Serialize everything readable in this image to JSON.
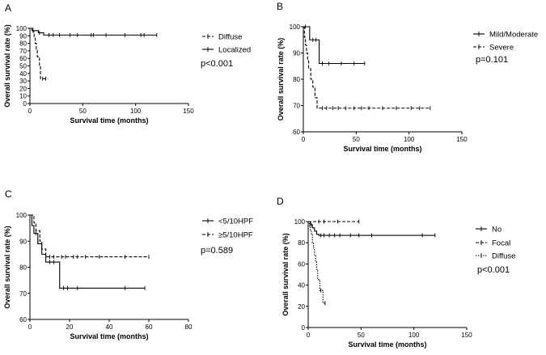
{
  "chart_data": [
    {
      "panel": "A",
      "type": "line",
      "step": true,
      "xlabel": "Survival time (months)",
      "ylabel": "Overall survival rate (%)",
      "xlim": [
        0,
        150
      ],
      "ylim": [
        0,
        100
      ],
      "xticks": [
        0,
        50,
        100,
        150
      ],
      "yticks": [
        0,
        10,
        20,
        30,
        40,
        50,
        60,
        70,
        80,
        90,
        100
      ],
      "legend_position": "right",
      "annotation": "p<0.001",
      "series": [
        {
          "name": "Diffuse",
          "style": "dashed",
          "steps": [
            [
              0,
              100
            ],
            [
              3,
              95
            ],
            [
              4,
              88
            ],
            [
              5,
              80
            ],
            [
              6,
              72
            ],
            [
              7,
              62
            ],
            [
              9,
              50
            ],
            [
              10,
              33
            ],
            [
              17,
              33
            ]
          ],
          "censored": [
            [
              12,
              33
            ],
            [
              15,
              33
            ]
          ]
        },
        {
          "name": "Localized",
          "style": "solid",
          "steps": [
            [
              0,
              100
            ],
            [
              2,
              97
            ],
            [
              6,
              97
            ],
            [
              8,
              94
            ],
            [
              11,
              94
            ],
            [
              13,
              91
            ],
            [
              120,
              91
            ]
          ],
          "censored": [
            [
              3,
              97
            ],
            [
              9,
              94
            ],
            [
              18,
              91
            ],
            [
              22,
              91
            ],
            [
              28,
              91
            ],
            [
              38,
              91
            ],
            [
              45,
              91
            ],
            [
              58,
              91
            ],
            [
              60,
              91
            ],
            [
              72,
              91
            ],
            [
              90,
              91
            ],
            [
              105,
              91
            ],
            [
              108,
              91
            ],
            [
              120,
              91
            ]
          ]
        }
      ]
    },
    {
      "panel": "B",
      "type": "line",
      "step": true,
      "xlabel": "Survival time (months)",
      "ylabel": "Overall survival rate (%)",
      "xlim": [
        0,
        150
      ],
      "ylim": [
        60,
        100
      ],
      "xticks": [
        0,
        50,
        100,
        150
      ],
      "yticks": [
        60,
        70,
        80,
        90,
        100
      ],
      "legend_position": "right",
      "annotation": "p=0.101",
      "series": [
        {
          "name": "Mild/Moderate",
          "style": "solid",
          "steps": [
            [
              0,
              100
            ],
            [
              5,
              100
            ],
            [
              6,
              95
            ],
            [
              14,
              95
            ],
            [
              15,
              86
            ],
            [
              58,
              86
            ]
          ],
          "censored": [
            [
              2,
              100
            ],
            [
              9,
              95
            ],
            [
              12,
              95
            ],
            [
              18,
              86
            ],
            [
              24,
              86
            ],
            [
              36,
              86
            ],
            [
              48,
              86
            ],
            [
              58,
              86
            ]
          ]
        },
        {
          "name": "Severe",
          "style": "dashed",
          "steps": [
            [
              0,
              100
            ],
            [
              1,
              96
            ],
            [
              2,
              93
            ],
            [
              3,
              90
            ],
            [
              4,
              87
            ],
            [
              5,
              84
            ],
            [
              7,
              80
            ],
            [
              9,
              77
            ],
            [
              11,
              73
            ],
            [
              13,
              69
            ],
            [
              120,
              69
            ]
          ],
          "censored": [
            [
              18,
              69
            ],
            [
              22,
              69
            ],
            [
              28,
              69
            ],
            [
              33,
              69
            ],
            [
              40,
              69
            ],
            [
              48,
              69
            ],
            [
              55,
              69
            ],
            [
              62,
              69
            ],
            [
              75,
              69
            ],
            [
              88,
              69
            ],
            [
              102,
              69
            ],
            [
              110,
              69
            ],
            [
              120,
              69
            ]
          ]
        }
      ]
    },
    {
      "panel": "C",
      "type": "line",
      "step": true,
      "xlabel": "Survival time (months)",
      "ylabel": "Overall survival rate (%)",
      "xlim": [
        0,
        80
      ],
      "ylim": [
        60,
        100
      ],
      "xticks": [
        0,
        20,
        40,
        60,
        80
      ],
      "yticks": [
        60,
        70,
        80,
        90,
        100
      ],
      "legend_position": "right",
      "annotation": "p=0.589",
      "series": [
        {
          "name": "<5/10HPF",
          "style": "solid",
          "steps": [
            [
              0,
              100
            ],
            [
              1,
              96
            ],
            [
              2,
              93
            ],
            [
              4,
              89
            ],
            [
              6,
              85
            ],
            [
              8,
              82
            ],
            [
              15,
              72
            ],
            [
              58,
              72
            ]
          ],
          "censored": [
            [
              3,
              93
            ],
            [
              10,
              82
            ],
            [
              12,
              82
            ],
            [
              17,
              72
            ],
            [
              19,
              72
            ],
            [
              24,
              72
            ],
            [
              48,
              72
            ],
            [
              58,
              72
            ]
          ]
        },
        {
          "name": "≥5/10HPF",
          "style": "dashed",
          "steps": [
            [
              0,
              100
            ],
            [
              2,
              97
            ],
            [
              3,
              94
            ],
            [
              5,
              90
            ],
            [
              6,
              87
            ],
            [
              8,
              84
            ],
            [
              60,
              84
            ]
          ],
          "censored": [
            [
              4,
              90
            ],
            [
              10,
              84
            ],
            [
              12,
              84
            ],
            [
              16,
              84
            ],
            [
              18,
              84
            ],
            [
              22,
              84
            ],
            [
              24,
              84
            ],
            [
              28,
              84
            ],
            [
              35,
              84
            ],
            [
              48,
              84
            ],
            [
              60,
              84
            ]
          ]
        }
      ]
    },
    {
      "panel": "D",
      "type": "line",
      "step": true,
      "xlabel": "Survival time (months)",
      "ylabel": "Overall survival rate (%)",
      "xlim": [
        0,
        150
      ],
      "ylim": [
        0,
        100
      ],
      "xticks": [
        0,
        50,
        100,
        150
      ],
      "yticks": [
        0,
        20,
        40,
        60,
        80,
        100
      ],
      "legend_position": "right",
      "annotation": "p<0.001",
      "series": [
        {
          "name": "No",
          "style": "solid",
          "steps": [
            [
              0,
              100
            ],
            [
              2,
              97
            ],
            [
              4,
              94
            ],
            [
              6,
              91
            ],
            [
              8,
              88
            ],
            [
              10,
              87
            ],
            [
              120,
              87
            ]
          ],
          "censored": [
            [
              3,
              97
            ],
            [
              12,
              87
            ],
            [
              15,
              87
            ],
            [
              20,
              87
            ],
            [
              25,
              87
            ],
            [
              30,
              87
            ],
            [
              40,
              87
            ],
            [
              48,
              87
            ],
            [
              60,
              87
            ],
            [
              108,
              87
            ],
            [
              120,
              87
            ]
          ]
        },
        {
          "name": "Focal",
          "style": "dashed",
          "steps": [
            [
              0,
              100
            ],
            [
              48,
              100
            ]
          ],
          "censored": [
            [
              10,
              100
            ],
            [
              15,
              100
            ],
            [
              28,
              100
            ],
            [
              48,
              100
            ]
          ]
        },
        {
          "name": "Diffuse",
          "style": "dotted",
          "steps": [
            [
              0,
              100
            ],
            [
              1,
              96
            ],
            [
              2,
              92
            ],
            [
              3,
              88
            ],
            [
              4,
              80
            ],
            [
              5,
              75
            ],
            [
              6,
              68
            ],
            [
              7,
              62
            ],
            [
              8,
              55
            ],
            [
              9,
              46
            ],
            [
              10,
              45
            ],
            [
              11,
              35
            ],
            [
              14,
              23
            ],
            [
              16,
              23
            ]
          ],
          "censored": [
            [
              12,
              35
            ],
            [
              16,
              23
            ]
          ]
        }
      ]
    }
  ]
}
